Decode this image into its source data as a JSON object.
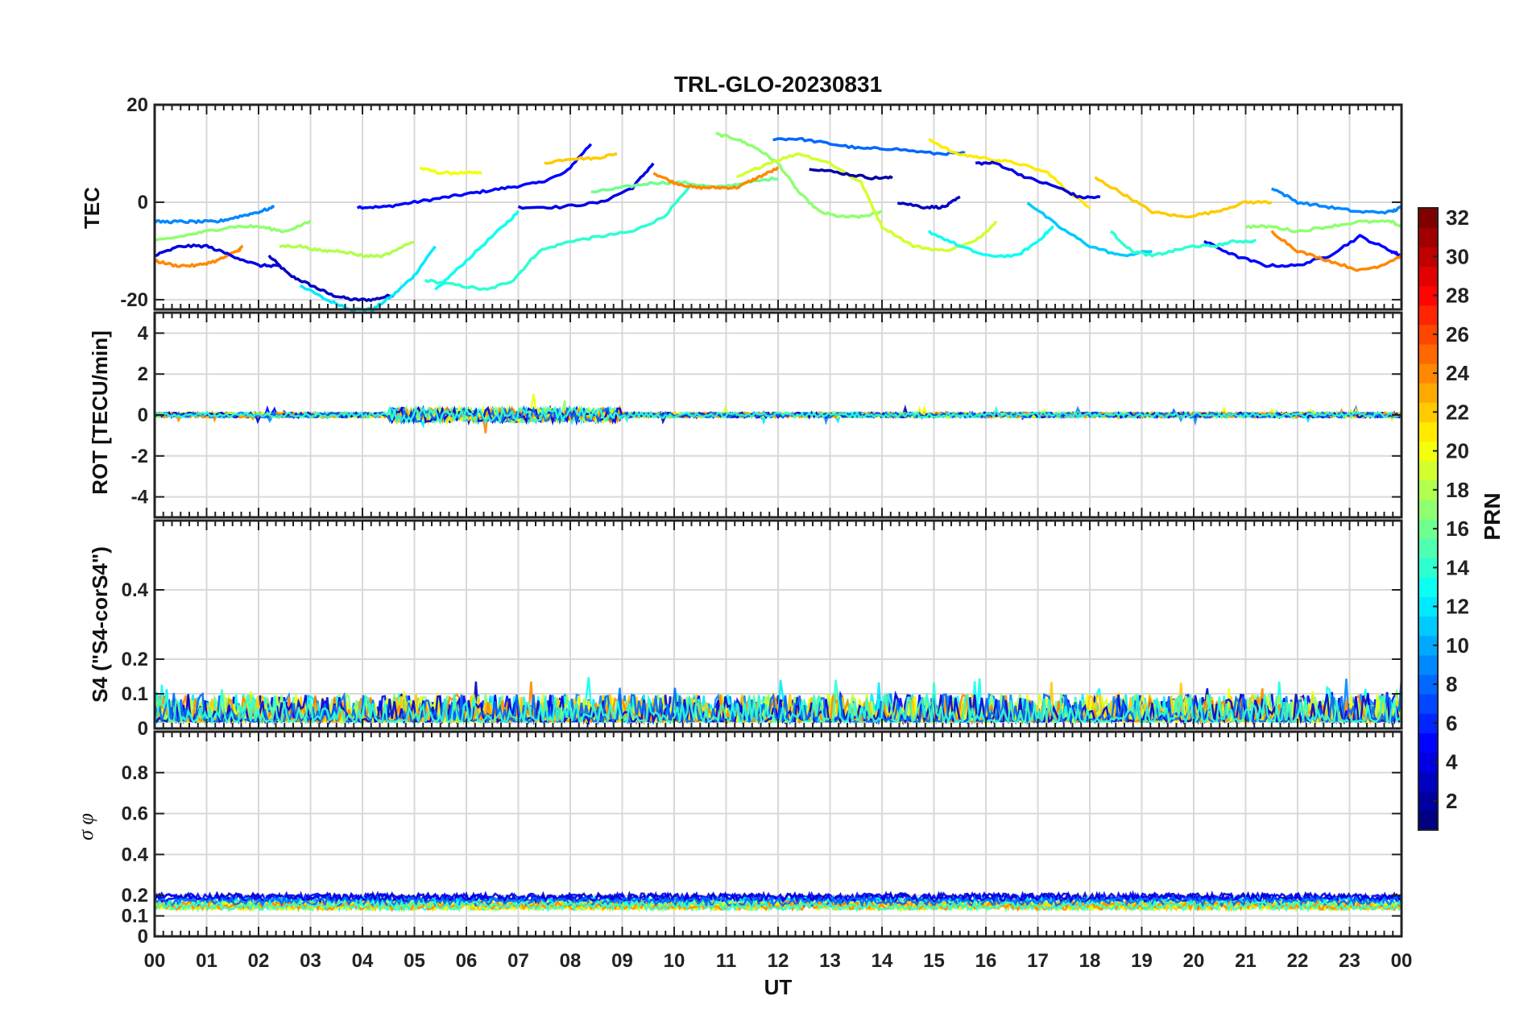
{
  "chart_data": {
    "type": "line",
    "title": "TRL-GLO-20230831",
    "xlabel": "UT",
    "x_ticks": [
      "00",
      "01",
      "02",
      "03",
      "04",
      "05",
      "06",
      "07",
      "08",
      "09",
      "10",
      "11",
      "12",
      "13",
      "14",
      "15",
      "16",
      "17",
      "18",
      "19",
      "20",
      "21",
      "22",
      "23",
      "00"
    ],
    "x_range": [
      0,
      24
    ],
    "colorbar": {
      "label": "PRN",
      "range": [
        1,
        32
      ],
      "ticks": [
        "2",
        "4",
        "6",
        "8",
        "10",
        "12",
        "14",
        "16",
        "18",
        "20",
        "22",
        "24",
        "26",
        "28",
        "30",
        "32"
      ],
      "colormap": "jet"
    },
    "panels": [
      {
        "id": "tec",
        "ylabel": "TEC",
        "ylim": [
          -22,
          20
        ],
        "yticks": [
          "20",
          "0",
          "-20"
        ],
        "series": [
          {
            "prn": 3,
            "x": [
              2.2,
              2.6,
              3.0,
              3.4,
              3.8,
              4.2,
              4.6
            ],
            "values": [
              -11,
              -15,
              -17,
              -19,
              -20,
              -20,
              -19
            ]
          },
          {
            "prn": 5,
            "x": [
              3.9,
              4.4,
              5.0,
              5.6,
              6.2,
              6.8,
              7.4,
              7.9,
              8.4
            ],
            "values": [
              -1,
              -1,
              0,
              1,
              2,
              3,
              4,
              6,
              12
            ]
          },
          {
            "prn": 12,
            "x": [
              2.8,
              3.3,
              3.8,
              4.2,
              4.6,
              5.0,
              5.4
            ],
            "values": [
              -17,
              -20,
              -22,
              -22,
              -19,
              -15,
              -9
            ]
          },
          {
            "prn": 20,
            "x": [
              5.1,
              5.5,
              6.0,
              6.3
            ],
            "values": [
              7,
              6,
              6,
              6
            ]
          },
          {
            "prn": 14,
            "x": [
              5.2,
              5.8,
              6.4,
              6.9,
              7.4,
              8.0,
              8.6,
              9.2,
              9.8,
              10.3
            ],
            "values": [
              -16,
              -17,
              -18,
              -16,
              -10,
              -8,
              -7,
              -6,
              -3,
              3
            ]
          },
          {
            "prn": 13,
            "x": [
              5.4,
              6.0,
              6.6,
              7.0
            ],
            "values": [
              -18,
              -12,
              -6,
              -2
            ]
          },
          {
            "prn": 22,
            "x": [
              7.5,
              8.0,
              8.5,
              8.9
            ],
            "values": [
              8,
              9,
              9,
              10
            ]
          },
          {
            "prn": 4,
            "x": [
              7.0,
              7.8,
              8.6,
              9.2,
              9.6
            ],
            "values": [
              -1,
              -1,
              0,
              3,
              8
            ]
          },
          {
            "prn": 16,
            "x": [
              8.4,
              9.0,
              9.6,
              10.2,
              10.8,
              11.4,
              12.0
            ],
            "values": [
              2,
              3,
              4,
              4,
              3,
              4,
              5
            ]
          },
          {
            "prn": 24,
            "x": [
              9.6,
              10.0,
              10.4,
              10.8,
              11.2,
              11.6,
              12.0
            ],
            "values": [
              6,
              4,
              3,
              3,
              3,
              5,
              7
            ]
          },
          {
            "prn": 17,
            "x": [
              10.8,
              11.2,
              11.6,
              12.0,
              12.4,
              12.8,
              13.2,
              13.6,
              14.0
            ],
            "values": [
              14,
              13,
              11,
              8,
              2,
              -2,
              -3,
              -3,
              -2
            ]
          },
          {
            "prn": 8,
            "x": [
              11.9,
              12.4,
              13.0,
              13.6,
              14.2,
              15.0,
              15.6
            ],
            "values": [
              13,
              13,
              12,
              11,
              11,
              10,
              10
            ]
          },
          {
            "prn": 19,
            "x": [
              11.2,
              11.8,
              12.4,
              13.0,
              13.6,
              14.0,
              14.6,
              15.2,
              15.8,
              16.2
            ],
            "values": [
              5,
              8,
              10,
              8,
              4,
              -5,
              -9,
              -10,
              -8,
              -4
            ]
          },
          {
            "prn": 2,
            "x": [
              12.6,
              13.2,
              13.8,
              14.2
            ],
            "values": [
              7,
              6,
              5,
              5
            ]
          },
          {
            "prn": 21,
            "x": [
              14.9,
              15.4,
              16.0,
              16.6,
              17.2,
              17.6,
              18.0
            ],
            "values": [
              13,
              10,
              9,
              8,
              6,
              2,
              -1
            ]
          },
          {
            "prn": 3,
            "x": [
              14.3,
              14.8,
              15.2,
              15.5
            ],
            "values": [
              0,
              -1,
              -1,
              1
            ]
          },
          {
            "prn": 13,
            "x": [
              14.9,
              15.5,
              16.0,
              16.6,
              17.0,
              17.3
            ],
            "values": [
              -6,
              -9,
              -11,
              -11,
              -8,
              -5
            ]
          },
          {
            "prn": 4,
            "x": [
              15.8,
              16.2,
              16.8,
              17.4,
              17.8,
              18.2
            ],
            "values": [
              8,
              8,
              5,
              3,
              1,
              1
            ]
          },
          {
            "prn": 22,
            "x": [
              18.1,
              18.6,
              19.2,
              19.8,
              20.4,
              21.0,
              21.5
            ],
            "values": [
              5,
              2,
              -2,
              -3,
              -2,
              0,
              0
            ]
          },
          {
            "prn": 11,
            "x": [
              16.8,
              17.4,
              18.0,
              18.6,
              19.2
            ],
            "values": [
              0,
              -5,
              -9,
              -11,
              -10
            ]
          },
          {
            "prn": 5,
            "x": [
              20.2,
              20.8,
              21.4,
              22.0,
              22.6,
              23.2,
              23.8,
              24.0
            ],
            "values": [
              -8,
              -11,
              -13,
              -13,
              -11,
              -7,
              -10,
              -11
            ]
          },
          {
            "prn": 9,
            "x": [
              21.5,
              22.0,
              22.6,
              23.2,
              23.8,
              24.0
            ],
            "values": [
              3,
              0,
              -1,
              -2,
              -2,
              -1
            ]
          },
          {
            "prn": 24,
            "x": [
              21.5,
              22.0,
              22.6,
              23.2,
              23.6,
              24.0
            ],
            "values": [
              -6,
              -10,
              -12,
              -14,
              -13,
              -11
            ]
          },
          {
            "prn": 9,
            "x": [
              0,
              0.4,
              0.8,
              1.2,
              1.6,
              2.0,
              2.3
            ],
            "values": [
              -4,
              -4,
              -4,
              -4,
              -3,
              -2,
              -1
            ]
          },
          {
            "prn": 24,
            "x": [
              0,
              0.4,
              0.8,
              1.2,
              1.6,
              1.7
            ],
            "values": [
              -12,
              -13,
              -13,
              -12,
              -10,
              -9
            ]
          },
          {
            "prn": 4,
            "x": [
              0,
              0.5,
              1.0,
              1.5,
              2.0,
              2.4
            ],
            "values": [
              -11,
              -9,
              -9,
              -11,
              -13,
              -13
            ]
          },
          {
            "prn": 17,
            "x": [
              0,
              0.5,
              1.0,
              1.5,
              2.0,
              2.5,
              3.0
            ],
            "values": [
              -8,
              -7,
              -6,
              -5,
              -5,
              -6,
              -4
            ]
          },
          {
            "prn": 18,
            "x": [
              2.4,
              2.8,
              3.2,
              3.6,
              4.0,
              4.4,
              5.0
            ],
            "values": [
              -9,
              -9,
              -10,
              -10,
              -11,
              -11,
              -8
            ]
          },
          {
            "prn": 14,
            "x": [
              18.4,
              18.8,
              19.2,
              19.6,
              20.0,
              20.4,
              20.8,
              21.2
            ],
            "values": [
              -6,
              -10,
              -11,
              -10,
              -9,
              -9,
              -8,
              -8
            ]
          },
          {
            "prn": 17,
            "x": [
              21.0,
              21.5,
              22.0,
              22.6,
              23.2,
              23.8,
              24.0
            ],
            "values": [
              -5,
              -5,
              -6,
              -5,
              -4,
              -4,
              -5
            ]
          }
        ]
      },
      {
        "id": "rot",
        "ylabel": "ROT [TECU/min]",
        "ylim": [
          -5,
          5
        ],
        "yticks": [
          "4",
          "2",
          "0",
          "-2",
          "-4"
        ]
      },
      {
        "id": "s4",
        "ylabel": "S4 (\"S4-corS4\")",
        "ylim": [
          0,
          0.6
        ],
        "yticks": [
          "0.4",
          "0.2",
          "0.1",
          "0"
        ]
      },
      {
        "id": "sigma_phi",
        "ylabel": "σ φ",
        "ylim": [
          0,
          1
        ],
        "yticks": [
          "0.8",
          "0.6",
          "0.4",
          "0.2",
          "0.1",
          "0"
        ]
      }
    ]
  }
}
